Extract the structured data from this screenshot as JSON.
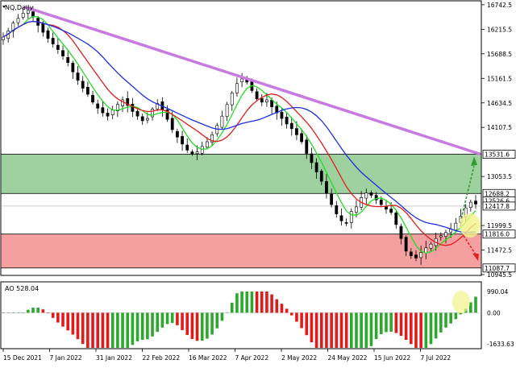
{
  "window": {
    "title": "NQ,Daily"
  },
  "colors": {
    "bull": "#000000",
    "bear": "#000000",
    "ma_fast": "#22dd22",
    "ma_mid": "#e51c1c",
    "ma_slow": "#1c2fe0",
    "trendline": "#c77ae0",
    "green_zone": "#9fd09f",
    "red_zone": "#f4a0a0",
    "ao_up": "#2ca82c",
    "ao_down": "#e31a1a",
    "highlight": "#f2f28a",
    "arrow_up": "#2e9a2e",
    "arrow_down": "#e02020"
  },
  "price_axis": {
    "ticks": [
      "16742.5",
      "16215.5",
      "15688.5",
      "15161.5",
      "14634.5",
      "14107.5",
      "13053.5",
      "11999.5",
      "11472.5",
      "10945.5"
    ],
    "markers": [
      {
        "value": 13531.6,
        "label": "13531.6"
      },
      {
        "value": 12688.2,
        "label": "12688.2"
      },
      {
        "value": 12526.6,
        "label": "12526.6"
      },
      {
        "value": 12417.8,
        "label": "12417.8"
      },
      {
        "value": 11816.0,
        "label": "11816.0"
      },
      {
        "value": 11087.7,
        "label": "11087.7"
      }
    ]
  },
  "ao_panel": {
    "title": "AO 528.04",
    "ticks": [
      "990.04",
      "0.00",
      "-1633.63"
    ]
  },
  "time_axis": {
    "labels": [
      "15 Dec 2021",
      "7 Jan 2022",
      "31 Jan 2022",
      "22 Feb 2022",
      "16 Mar 2022",
      "7 Apr 2022",
      "2 May 2022",
      "24 May 2022",
      "15 Jun 2022",
      "7 Jul 2022"
    ]
  },
  "zones": {
    "resistance_top": 13531.6,
    "resistance_bottom": 12688.2,
    "support_top": 11816.0,
    "support_bottom": 11087.7
  },
  "chart_data": {
    "type": "candlestick",
    "symbol": "NQ",
    "timeframe": "Daily",
    "ylim": [
      10945.5,
      16810
    ],
    "trendline": {
      "from": {
        "date": "23 Dec 2021",
        "value": 16700
      },
      "to": {
        "date": "15 Jul 2022",
        "value": 13531.6
      }
    },
    "close": [
      16050,
      16180,
      16350,
      16450,
      16560,
      16620,
      16480,
      16300,
      16150,
      16020,
      15900,
      15780,
      15640,
      15500,
      15300,
      15120,
      14950,
      14820,
      14650,
      14520,
      14420,
      14350,
      14480,
      14600,
      14700,
      14580,
      14450,
      14350,
      14250,
      14300,
      14500,
      14620,
      14480,
      14280,
      14060,
      13900,
      13750,
      13620,
      13540,
      13580,
      13700,
      13800,
      13950,
      14150,
      14350,
      14600,
      14850,
      15050,
      15150,
      15080,
      14900,
      14720,
      14650,
      14700,
      14550,
      14420,
      14300,
      14180,
      14080,
      13950,
      13800,
      13550,
      13350,
      13150,
      12950,
      12700,
      12450,
      12250,
      12100,
      12050,
      12300,
      12400,
      12600,
      12700,
      12650,
      12550,
      12450,
      12350,
      12280,
      12020,
      11720,
      11450,
      11350,
      11300,
      11420,
      11520,
      11600,
      11720,
      11780,
      11850,
      11920,
      12050,
      12200,
      12380,
      12500,
      12460
    ]
  }
}
